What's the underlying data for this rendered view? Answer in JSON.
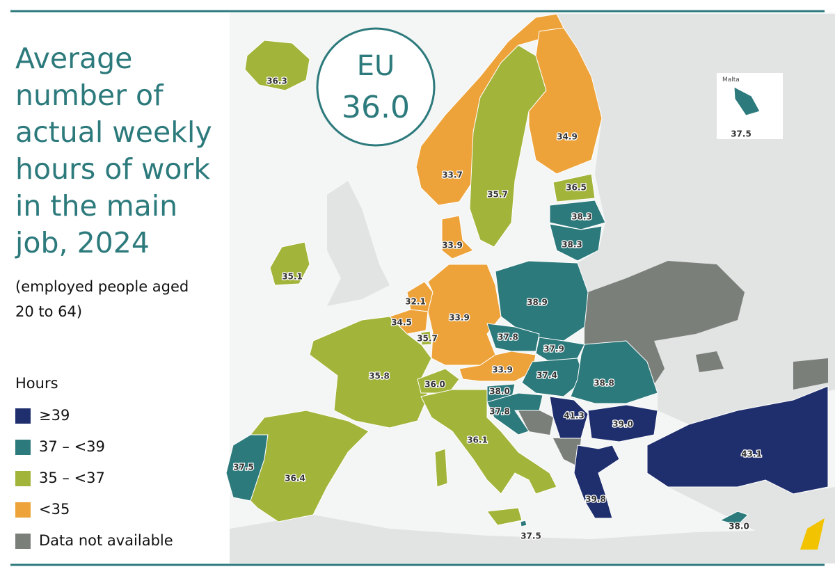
{
  "title": "Average number of actual weekly hours of work in the main job, 2024",
  "subtitle": "(employed people aged 20 to 64)",
  "eu": {
    "label": "EU",
    "value": 36.0,
    "value_label": "36.0"
  },
  "legend": {
    "title": "Hours",
    "items": [
      {
        "label": "≥39",
        "color": "#1f2f6e"
      },
      {
        "label": "37 – <39",
        "color": "#2d7a7c"
      },
      {
        "label": "35 – <37",
        "color": "#a3b43a"
      },
      {
        "label": "<35",
        "color": "#eda33a"
      },
      {
        "label": "Data not available",
        "color": "#7b7f7a"
      }
    ]
  },
  "inset_label": "Malta",
  "regions": {
    "values": [
      36.3,
      33.7,
      35.7,
      34.9,
      36.5,
      38.3,
      38.3,
      33.9,
      35.1,
      32.1,
      34.5,
      35.7,
      33.9,
      38.9,
      37.8,
      37.9,
      33.9,
      37.4,
      38.8,
      35.8,
      36.0,
      38.0,
      37.8,
      41.3,
      39.0,
      36.1,
      37.5,
      36.4,
      39.8,
      43.1,
      38.0,
      37.5,
      37.5
    ],
    "value_labels": [
      "36.3",
      "33.7",
      "35.7",
      "34.9",
      "36.5",
      "38.3",
      "38.3",
      "33.9",
      "35.1",
      "32.1",
      "34.5",
      "35.7",
      "33.9",
      "38.9",
      "37.8",
      "37.9",
      "33.9",
      "37.4",
      "38.8",
      "35.8",
      "36.0",
      "38.0",
      "37.8",
      "41.3",
      "39.0",
      "36.1",
      "37.5",
      "36.4",
      "39.8",
      "43.1",
      "38.0",
      "37.5",
      "37.5"
    ],
    "colors": [
      "#a3b43a",
      "#eda33a",
      "#a3b43a",
      "#eda33a",
      "#a3b43a",
      "#2d7a7c",
      "#2d7a7c",
      "#eda33a",
      "#a3b43a",
      "#eda33a",
      "#eda33a",
      "#a3b43a",
      "#eda33a",
      "#2d7a7c",
      "#2d7a7c",
      "#2d7a7c",
      "#eda33a",
      "#2d7a7c",
      "#2d7a7c",
      "#a3b43a",
      "#a3b43a",
      "#2d7a7c",
      "#2d7a7c",
      "#1f2f6e",
      "#1f2f6e",
      "#a3b43a",
      "#2d7a7c",
      "#a3b43a",
      "#1f2f6e",
      "#1f2f6e",
      "#2d7a7c",
      "#2d7a7c",
      "#2d7a7c"
    ]
  }
}
